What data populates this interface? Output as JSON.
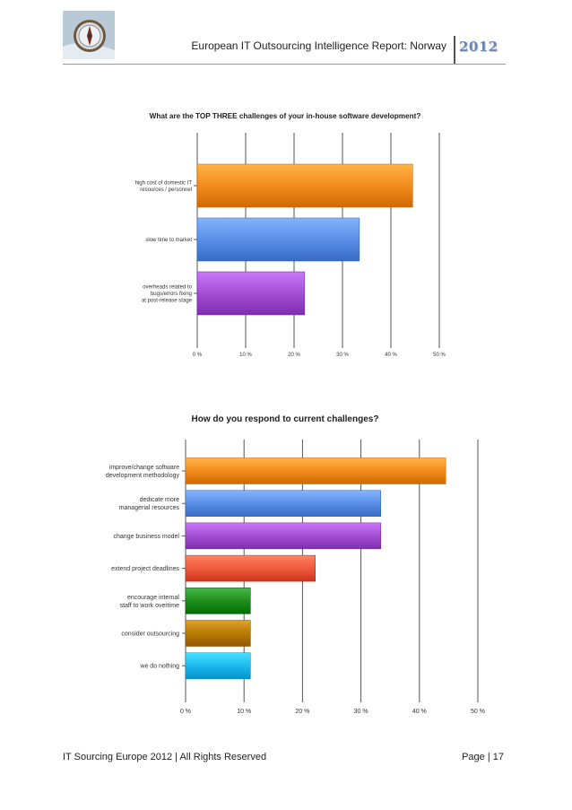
{
  "header": {
    "logo_icon": "compass-icon",
    "title": "European IT Outsourcing Intelligence Report: Norway",
    "year": "2012"
  },
  "chart_data": [
    {
      "type": "bar",
      "orientation": "horizontal",
      "title": "What are the TOP THREE challenges of your in-house software development?",
      "categories": [
        [
          "high cost of domestic IT",
          "resources / personnel"
        ],
        [
          "slow time to market"
        ],
        [
          "overheads related to",
          "bugs/errors fixing",
          "at post-release stage"
        ]
      ],
      "values": [
        44.5,
        33.5,
        22.2
      ],
      "colors": [
        "#f28c1e",
        "#5b8ee6",
        "#a34fd3"
      ],
      "xlim": [
        0,
        50
      ],
      "ticks": [
        "0 %",
        "10 %",
        "20 %",
        "30 %",
        "40 %",
        "50 %"
      ],
      "grid": true,
      "xlabel": "",
      "ylabel": ""
    },
    {
      "type": "bar",
      "orientation": "horizontal",
      "title": "How do you respond to current challenges?",
      "categories": [
        [
          "improve/change software",
          "development methodology"
        ],
        [
          "dedicate more",
          "managerial resources"
        ],
        [
          "change business model"
        ],
        [
          "extend project deadlines"
        ],
        [
          "encourage internal",
          "staff to work overtime"
        ],
        [
          "consider outsourcing"
        ],
        [
          "we do nothing"
        ]
      ],
      "values": [
        44.5,
        33.4,
        33.4,
        22.2,
        11.1,
        11.1,
        11.1
      ],
      "colors": [
        "#f28c1e",
        "#5b8ee6",
        "#a34fd3",
        "#ef5a3c",
        "#1f8f1f",
        "#b77b05",
        "#1eb8ee"
      ],
      "xlim": [
        0,
        50
      ],
      "ticks": [
        "0 %",
        "10 %",
        "20 %",
        "30 %",
        "40 %",
        "50 %"
      ],
      "grid": true,
      "xlabel": "",
      "ylabel": ""
    }
  ],
  "footer": {
    "left": "IT Sourcing Europe 2012 | All Rights Reserved",
    "right": "Page | 17"
  }
}
